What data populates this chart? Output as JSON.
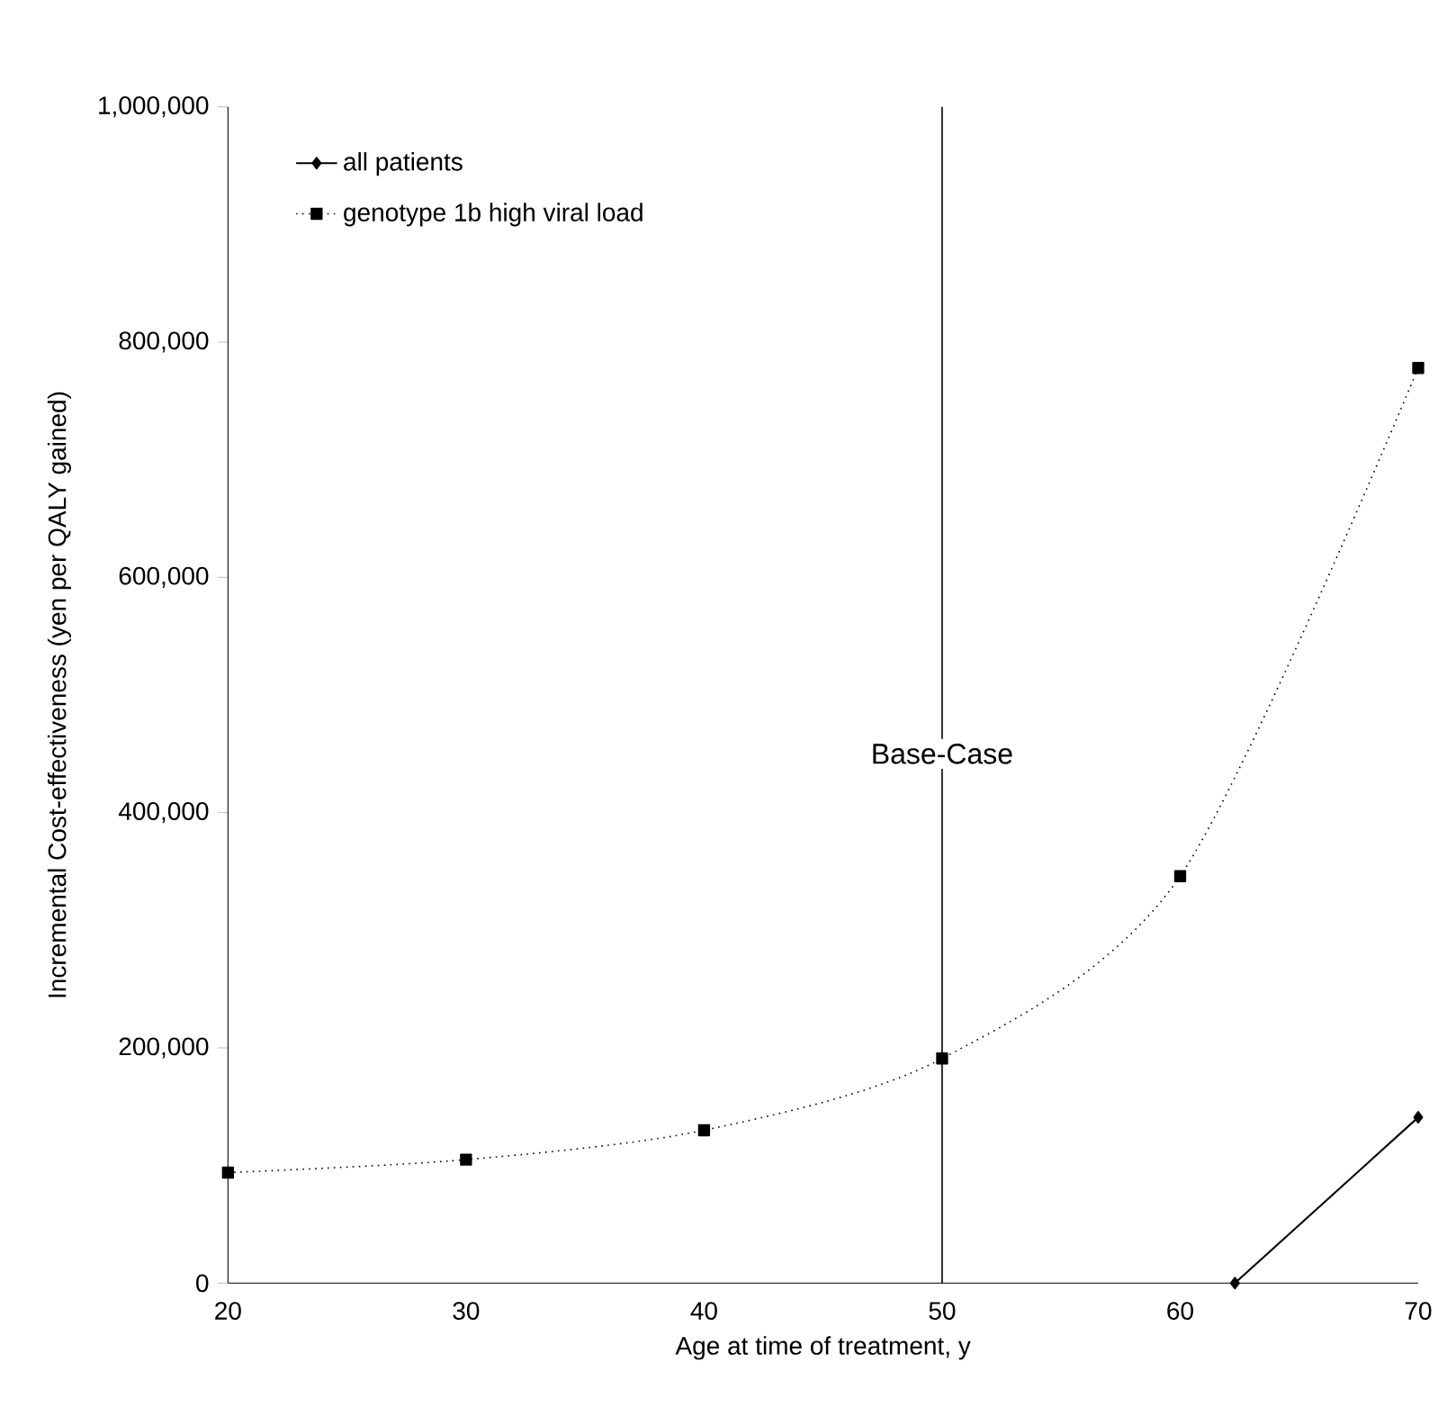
{
  "chart_data": {
    "type": "line",
    "xlabel": "Age at time of treatment, y",
    "ylabel": "Incremental Cost-effectiveness (yen per QALY gained)",
    "xlim": [
      20,
      70
    ],
    "xticks": [
      20,
      30,
      40,
      50,
      60,
      70
    ],
    "ylim": [
      0,
      1000000
    ],
    "yticks": [
      {
        "value": 0,
        "label": "0"
      },
      {
        "value": 200000,
        "label": "200,000"
      },
      {
        "value": 400000,
        "label": "400,000"
      },
      {
        "value": 600000,
        "label": "600,000"
      },
      {
        "value": 800000,
        "label": "800,000"
      },
      {
        "value": 1000000,
        "label": "1,000,000"
      }
    ],
    "series": [
      {
        "name": "all patients",
        "color": "#000000",
        "marker": "diamond",
        "line_style": "solid",
        "x": [
          62.3,
          70
        ],
        "values": [
          0,
          141000
        ]
      },
      {
        "name": "genotype 1b high viral load",
        "color": "#000000",
        "marker": "square",
        "line_style": "dotted",
        "x": [
          20,
          30,
          40,
          50,
          60,
          70
        ],
        "values": [
          94000,
          105000,
          130000,
          191000,
          346000,
          778000
        ]
      }
    ],
    "ref_lines": [
      {
        "axis": "x",
        "value": 50,
        "label": "Base-Case",
        "color": "#000000",
        "line_style": "solid"
      }
    ],
    "legend": "top left",
    "grid": false
  }
}
